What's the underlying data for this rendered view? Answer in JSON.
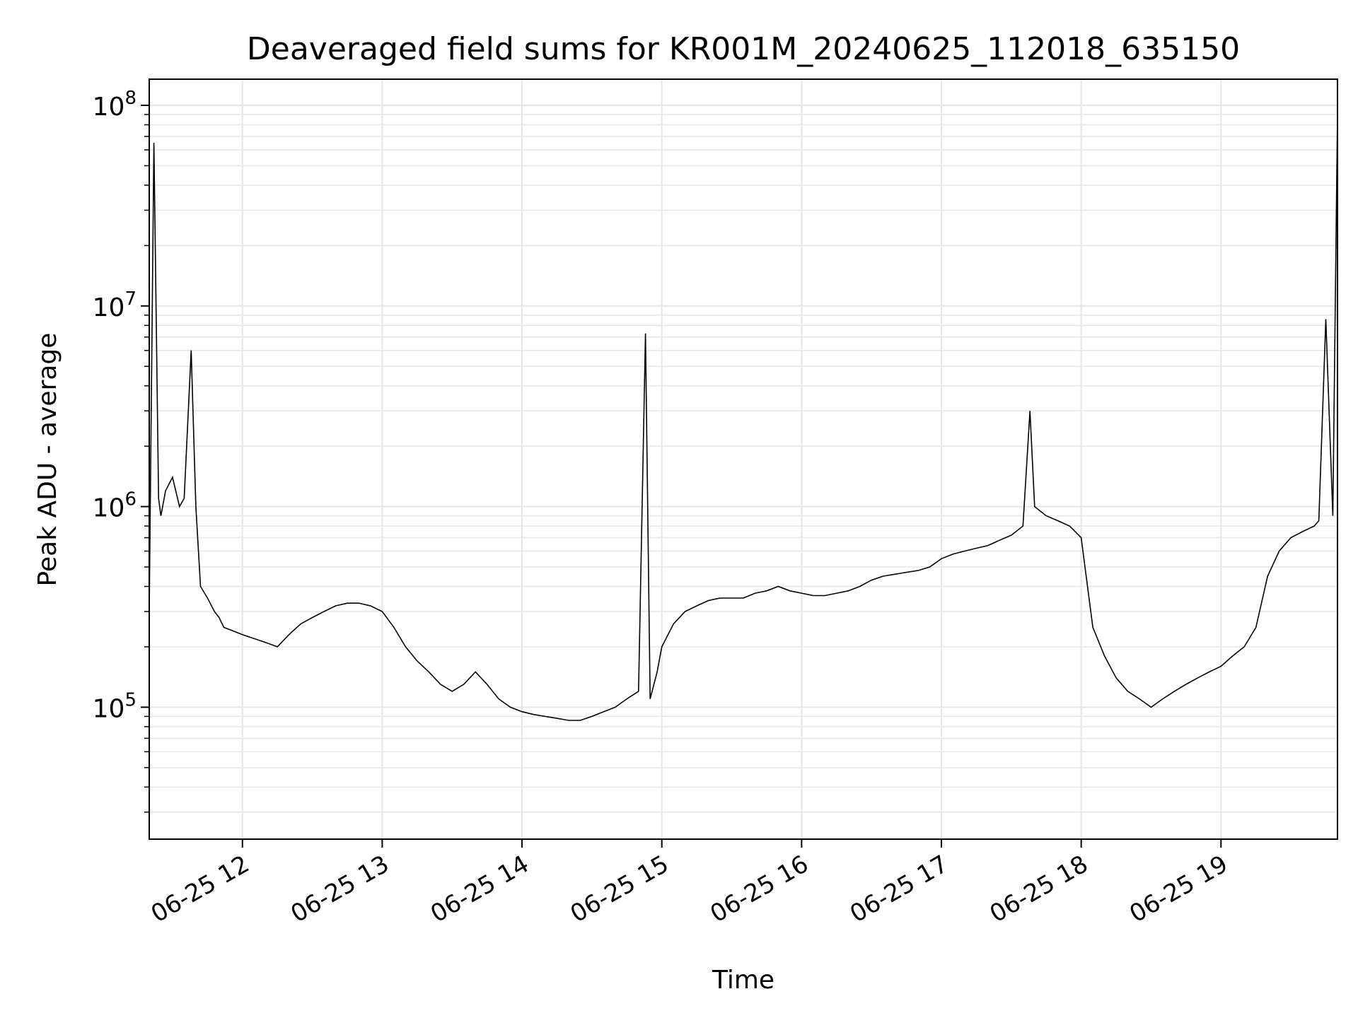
{
  "chart_data": {
    "type": "line",
    "title": "Deaveraged field sums for KR001M_20240625_112018_635150",
    "xlabel": "Time",
    "ylabel": "Peak ADU - average",
    "x_scale": "time",
    "y_scale": "log",
    "xlim": [
      "2024-06-25 11:20",
      "2024-06-25 19:50"
    ],
    "ylim": [
      22000,
      135000000
    ],
    "grid": true,
    "line_color": "#000000",
    "x_ticks": [
      {
        "value": "2024-06-25 12:00",
        "label": "06-25 12"
      },
      {
        "value": "2024-06-25 13:00",
        "label": "06-25 13"
      },
      {
        "value": "2024-06-25 14:00",
        "label": "06-25 14"
      },
      {
        "value": "2024-06-25 15:00",
        "label": "06-25 15"
      },
      {
        "value": "2024-06-25 16:00",
        "label": "06-25 16"
      },
      {
        "value": "2024-06-25 17:00",
        "label": "06-25 17"
      },
      {
        "value": "2024-06-25 18:00",
        "label": "06-25 18"
      },
      {
        "value": "2024-06-25 19:00",
        "label": "06-25 19"
      }
    ],
    "y_ticks": [
      {
        "value": 100000,
        "base": "10",
        "exp": "5"
      },
      {
        "value": 1000000,
        "base": "10",
        "exp": "6"
      },
      {
        "value": 10000000,
        "base": "10",
        "exp": "7"
      },
      {
        "value": 100000000,
        "base": "10",
        "exp": "8"
      }
    ],
    "series": [
      {
        "x": [
          "2024-06-25 11:20",
          "2024-06-25 11:22",
          "2024-06-25 11:24",
          "2024-06-25 11:25",
          "2024-06-25 11:27",
          "2024-06-25 11:30",
          "2024-06-25 11:33",
          "2024-06-25 11:35",
          "2024-06-25 11:38",
          "2024-06-25 11:40",
          "2024-06-25 11:42",
          "2024-06-25 11:45",
          "2024-06-25 11:48",
          "2024-06-25 11:50",
          "2024-06-25 11:52",
          "2024-06-25 11:56",
          "2024-06-25 12:00",
          "2024-06-25 12:05",
          "2024-06-25 12:10",
          "2024-06-25 12:15",
          "2024-06-25 12:20",
          "2024-06-25 12:25",
          "2024-06-25 12:30",
          "2024-06-25 12:35",
          "2024-06-25 12:40",
          "2024-06-25 12:45",
          "2024-06-25 12:50",
          "2024-06-25 12:55",
          "2024-06-25 13:00",
          "2024-06-25 13:05",
          "2024-06-25 13:10",
          "2024-06-25 13:15",
          "2024-06-25 13:20",
          "2024-06-25 13:25",
          "2024-06-25 13:30",
          "2024-06-25 13:35",
          "2024-06-25 13:40",
          "2024-06-25 13:45",
          "2024-06-25 13:50",
          "2024-06-25 13:55",
          "2024-06-25 14:00",
          "2024-06-25 14:05",
          "2024-06-25 14:10",
          "2024-06-25 14:15",
          "2024-06-25 14:20",
          "2024-06-25 14:25",
          "2024-06-25 14:30",
          "2024-06-25 14:35",
          "2024-06-25 14:40",
          "2024-06-25 14:45",
          "2024-06-25 14:50",
          "2024-06-25 14:53",
          "2024-06-25 14:55",
          "2024-06-25 14:58",
          "2024-06-25 15:00",
          "2024-06-25 15:05",
          "2024-06-25 15:10",
          "2024-06-25 15:15",
          "2024-06-25 15:20",
          "2024-06-25 15:25",
          "2024-06-25 15:30",
          "2024-06-25 15:35",
          "2024-06-25 15:40",
          "2024-06-25 15:45",
          "2024-06-25 15:50",
          "2024-06-25 15:55",
          "2024-06-25 16:00",
          "2024-06-25 16:05",
          "2024-06-25 16:10",
          "2024-06-25 16:15",
          "2024-06-25 16:20",
          "2024-06-25 16:25",
          "2024-06-25 16:30",
          "2024-06-25 16:35",
          "2024-06-25 16:40",
          "2024-06-25 16:45",
          "2024-06-25 16:50",
          "2024-06-25 16:55",
          "2024-06-25 17:00",
          "2024-06-25 17:05",
          "2024-06-25 17:10",
          "2024-06-25 17:15",
          "2024-06-25 17:20",
          "2024-06-25 17:25",
          "2024-06-25 17:30",
          "2024-06-25 17:35",
          "2024-06-25 17:38",
          "2024-06-25 17:40",
          "2024-06-25 17:45",
          "2024-06-25 17:50",
          "2024-06-25 17:55",
          "2024-06-25 18:00",
          "2024-06-25 18:05",
          "2024-06-25 18:10",
          "2024-06-25 18:15",
          "2024-06-25 18:20",
          "2024-06-25 18:25",
          "2024-06-25 18:30",
          "2024-06-25 18:35",
          "2024-06-25 18:40",
          "2024-06-25 18:45",
          "2024-06-25 18:50",
          "2024-06-25 18:55",
          "2024-06-25 19:00",
          "2024-06-25 19:05",
          "2024-06-25 19:10",
          "2024-06-25 19:15",
          "2024-06-25 19:20",
          "2024-06-25 19:25",
          "2024-06-25 19:30",
          "2024-06-25 19:35",
          "2024-06-25 19:40",
          "2024-06-25 19:42",
          "2024-06-25 19:45",
          "2024-06-25 19:48",
          "2024-06-25 19:50"
        ],
        "y": [
          300000,
          65000000,
          1100000,
          900000,
          1200000,
          1400000,
          1000000,
          1100000,
          6000000,
          1000000,
          400000,
          350000,
          300000,
          280000,
          250000,
          240000,
          230000,
          220000,
          210000,
          200000,
          230000,
          260000,
          280000,
          300000,
          320000,
          330000,
          330000,
          320000,
          300000,
          250000,
          200000,
          170000,
          150000,
          130000,
          120000,
          130000,
          150000,
          130000,
          110000,
          100000,
          95000,
          92000,
          90000,
          88000,
          86000,
          86000,
          90000,
          95000,
          100000,
          110000,
          120000,
          7300000,
          110000,
          150000,
          200000,
          260000,
          300000,
          320000,
          340000,
          350000,
          350000,
          350000,
          370000,
          380000,
          400000,
          380000,
          370000,
          360000,
          360000,
          370000,
          380000,
          400000,
          430000,
          450000,
          460000,
          470000,
          480000,
          500000,
          550000,
          580000,
          600000,
          620000,
          640000,
          680000,
          720000,
          800000,
          3000000,
          1000000,
          900000,
          850000,
          800000,
          700000,
          250000,
          180000,
          140000,
          120000,
          110000,
          100000,
          110000,
          120000,
          130000,
          140000,
          150000,
          160000,
          180000,
          200000,
          250000,
          450000,
          600000,
          700000,
          750000,
          800000,
          850000,
          8600000,
          900000,
          90000000
        ]
      }
    ]
  }
}
